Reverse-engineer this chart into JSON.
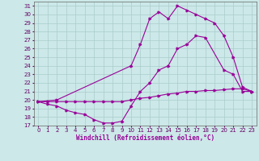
{
  "xlabel": "Windchill (Refroidissement éolien,°C)",
  "bg_color": "#cce8e8",
  "grid_color": "#aacccc",
  "line_color": "#990099",
  "xlim": [
    -0.5,
    23.5
  ],
  "ylim": [
    17,
    31.5
  ],
  "xticks": [
    0,
    1,
    2,
    3,
    4,
    5,
    6,
    7,
    8,
    9,
    10,
    11,
    12,
    13,
    14,
    15,
    16,
    17,
    18,
    19,
    20,
    21,
    22,
    23
  ],
  "yticks": [
    17,
    18,
    19,
    20,
    21,
    22,
    23,
    24,
    25,
    26,
    27,
    28,
    29,
    30,
    31
  ],
  "line1_x": [
    0,
    1,
    2,
    3,
    4,
    5,
    6,
    7,
    8,
    9,
    10,
    11,
    12,
    13,
    14,
    15,
    16,
    17,
    18,
    19,
    20,
    21,
    22,
    23
  ],
  "line1_y": [
    19.8,
    19.8,
    19.8,
    19.8,
    19.8,
    19.8,
    19.8,
    19.8,
    19.8,
    19.8,
    20.0,
    20.2,
    20.3,
    20.5,
    20.7,
    20.8,
    21.0,
    21.0,
    21.1,
    21.1,
    21.2,
    21.3,
    21.3,
    21.0
  ],
  "line2_x": [
    0,
    1,
    2,
    3,
    4,
    5,
    6,
    7,
    8,
    9,
    10,
    11,
    12,
    13,
    14,
    15,
    16,
    17,
    18,
    20,
    21,
    22,
    23
  ],
  "line2_y": [
    19.8,
    19.5,
    19.3,
    18.8,
    18.5,
    18.3,
    17.7,
    17.3,
    17.3,
    17.5,
    19.3,
    21.0,
    22.0,
    23.5,
    24.0,
    26.0,
    26.5,
    27.5,
    27.3,
    23.5,
    23.0,
    21.0,
    21.0
  ],
  "line3_x": [
    0,
    2,
    10,
    11,
    12,
    13,
    14,
    15,
    16,
    17,
    18,
    19,
    20,
    21,
    22,
    23
  ],
  "line3_y": [
    19.8,
    20.0,
    24.0,
    26.5,
    29.5,
    30.3,
    29.5,
    31.0,
    30.5,
    30.0,
    29.5,
    29.0,
    27.5,
    25.0,
    21.5,
    21.0
  ]
}
